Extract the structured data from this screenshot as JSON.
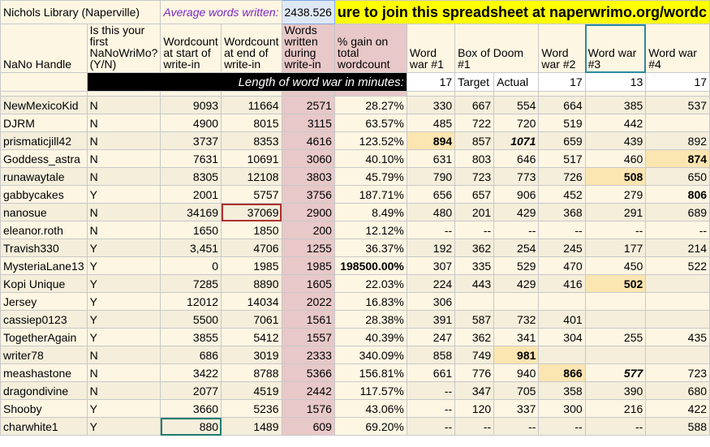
{
  "top": {
    "library": "Nichols Library (Naperville)",
    "avg_label": "Average words written:",
    "avg_value": "2438.526",
    "banner": "ure to join this spreadsheet at naperwrimo.org/wordc"
  },
  "headers": {
    "handle": "NaNo Handle",
    "first": "Is this your first NaNoWriMo? (Y/N)",
    "start": "Wordcount at start of write-in",
    "end": "Wordcount at end of write-in",
    "written": "Words written during write-in",
    "gain": "% gain on total wordcount",
    "ww1": "Word war #1",
    "box": "Box of Doom #1",
    "ww2": "Word war #2",
    "ww3": "Word war #3",
    "ww4": "Word war #4"
  },
  "length_row": {
    "label": "Length of word war in minutes:",
    "ww1": "17",
    "target": "Target",
    "actual": "Actual",
    "ww2": "17",
    "ww3": "13",
    "ww4": "17"
  },
  "rows": [
    {
      "handle": "NewMexicoKid",
      "first": "N",
      "start": "9093",
      "end": "11664",
      "written": "2571",
      "gain": "28.27%",
      "ww1": "330",
      "target": "667",
      "actual": "554",
      "ww2": "664",
      "ww3": "385",
      "ww4": "537"
    },
    {
      "handle": "DJRM",
      "first": "N",
      "start": "4900",
      "end": "8015",
      "written": "3115",
      "gain": "63.57%",
      "ww1": "485",
      "target": "722",
      "actual": "720",
      "ww2": "519",
      "ww3": "442",
      "ww4": ""
    },
    {
      "handle": "prismaticjill42",
      "first": "N",
      "start": "3737",
      "end": "8353",
      "written": "4616",
      "gain": "123.52%",
      "ww1": "894",
      "target": "857",
      "actual": "1071",
      "ww2": "659",
      "ww3": "439",
      "ww4": "892"
    },
    {
      "handle": "Goddess_astra",
      "first": "N",
      "start": "7631",
      "end": "10691",
      "written": "3060",
      "gain": "40.10%",
      "ww1": "631",
      "target": "803",
      "actual": "646",
      "ww2": "517",
      "ww3": "460",
      "ww4": "874"
    },
    {
      "handle": "runawaytale",
      "first": "N",
      "start": "8305",
      "end": "12108",
      "written": "3803",
      "gain": "45.79%",
      "ww1": "790",
      "target": "723",
      "actual": "773",
      "ww2": "726",
      "ww3": "508",
      "ww4": "650"
    },
    {
      "handle": "gabbycakes",
      "first": "Y",
      "start": "2001",
      "end": "5757",
      "written": "3756",
      "gain": "187.71%",
      "ww1": "656",
      "target": "657",
      "actual": "906",
      "ww2": "452",
      "ww3": "279",
      "ww4": "806"
    },
    {
      "handle": "nanosue",
      "first": "N",
      "start": "34169",
      "end": "37069",
      "written": "2900",
      "gain": "8.49%",
      "ww1": "480",
      "target": "201",
      "actual": "429",
      "ww2": "368",
      "ww3": "291",
      "ww4": "689"
    },
    {
      "handle": "eleanor.roth",
      "first": "N",
      "start": "1650",
      "end": "1850",
      "written": "200",
      "gain": "12.12%",
      "ww1": "--",
      "target": "--",
      "actual": "--",
      "ww2": "--",
      "ww3": "--",
      "ww4": "--"
    },
    {
      "handle": "Travish330",
      "first": "Y",
      "start": "3,451",
      "end": "4706",
      "written": "1255",
      "gain": "36.37%",
      "ww1": "192",
      "target": "362",
      "actual": "254",
      "ww2": "245",
      "ww3": "177",
      "ww4": "214"
    },
    {
      "handle": "MysteriaLane13",
      "first": "Y",
      "start": "0",
      "end": "1985",
      "written": "1985",
      "gain": "198500.00%",
      "ww1": "307",
      "target": "335",
      "actual": "529",
      "ww2": "470",
      "ww3": "450",
      "ww4": "522"
    },
    {
      "handle": "Kopi Unique",
      "first": "Y",
      "start": "7285",
      "end": "8890",
      "written": "1605",
      "gain": "22.03%",
      "ww1": "224",
      "target": "443",
      "actual": "429",
      "ww2": "416",
      "ww3": "502",
      "ww4": ""
    },
    {
      "handle": "Jersey",
      "first": "Y",
      "start": "12012",
      "end": "14034",
      "written": "2022",
      "gain": "16.83%",
      "ww1": "306",
      "target": "",
      "actual": "",
      "ww2": "",
      "ww3": "",
      "ww4": ""
    },
    {
      "handle": "cassiep0123",
      "first": "Y",
      "start": "5500",
      "end": "7061",
      "written": "1561",
      "gain": "28.38%",
      "ww1": "391",
      "target": "587",
      "actual": "732",
      "ww2": "401",
      "ww3": "",
      "ww4": ""
    },
    {
      "handle": "TogetherAgain",
      "first": "Y",
      "start": "3855",
      "end": "5412",
      "written": "1557",
      "gain": "40.39%",
      "ww1": "247",
      "target": "362",
      "actual": "341",
      "ww2": "304",
      "ww3": "255",
      "ww4": "435"
    },
    {
      "handle": "writer78",
      "first": "N",
      "start": "686",
      "end": "3019",
      "written": "2333",
      "gain": "340.09%",
      "ww1": "858",
      "target": "749",
      "actual": "981",
      "ww2": "",
      "ww3": "",
      "ww4": ""
    },
    {
      "handle": "meashastone",
      "first": "N",
      "start": "3422",
      "end": "8788",
      "written": "5366",
      "gain": "156.81%",
      "ww1": "661",
      "target": "776",
      "actual": "940",
      "ww2": "866",
      "ww3": "577",
      "ww4": "723"
    },
    {
      "handle": "dragondivine",
      "first": "N",
      "start": "2077",
      "end": "4519",
      "written": "2442",
      "gain": "117.57%",
      "ww1": "--",
      "target": "347",
      "actual": "705",
      "ww2": "358",
      "ww3": "390",
      "ww4": "680"
    },
    {
      "handle": "Shooby",
      "first": "Y",
      "start": "3660",
      "end": "5236",
      "written": "1576",
      "gain": "43.06%",
      "ww1": "--",
      "target": "120",
      "actual": "337",
      "ww2": "300",
      "ww3": "216",
      "ww4": "422"
    },
    {
      "handle": "charwhite1",
      "first": "Y",
      "start": "880",
      "end": "1489",
      "written": "609",
      "gain": "69.20%",
      "ww1": "--",
      "target": "--",
      "actual": "--",
      "ww2": "--",
      "ww3": "--",
      "ww4": "588"
    }
  ],
  "highlights": {
    "bg": "#fbe5b1",
    "written_col": "#e8c8c8",
    "banner": "#ffff00"
  }
}
